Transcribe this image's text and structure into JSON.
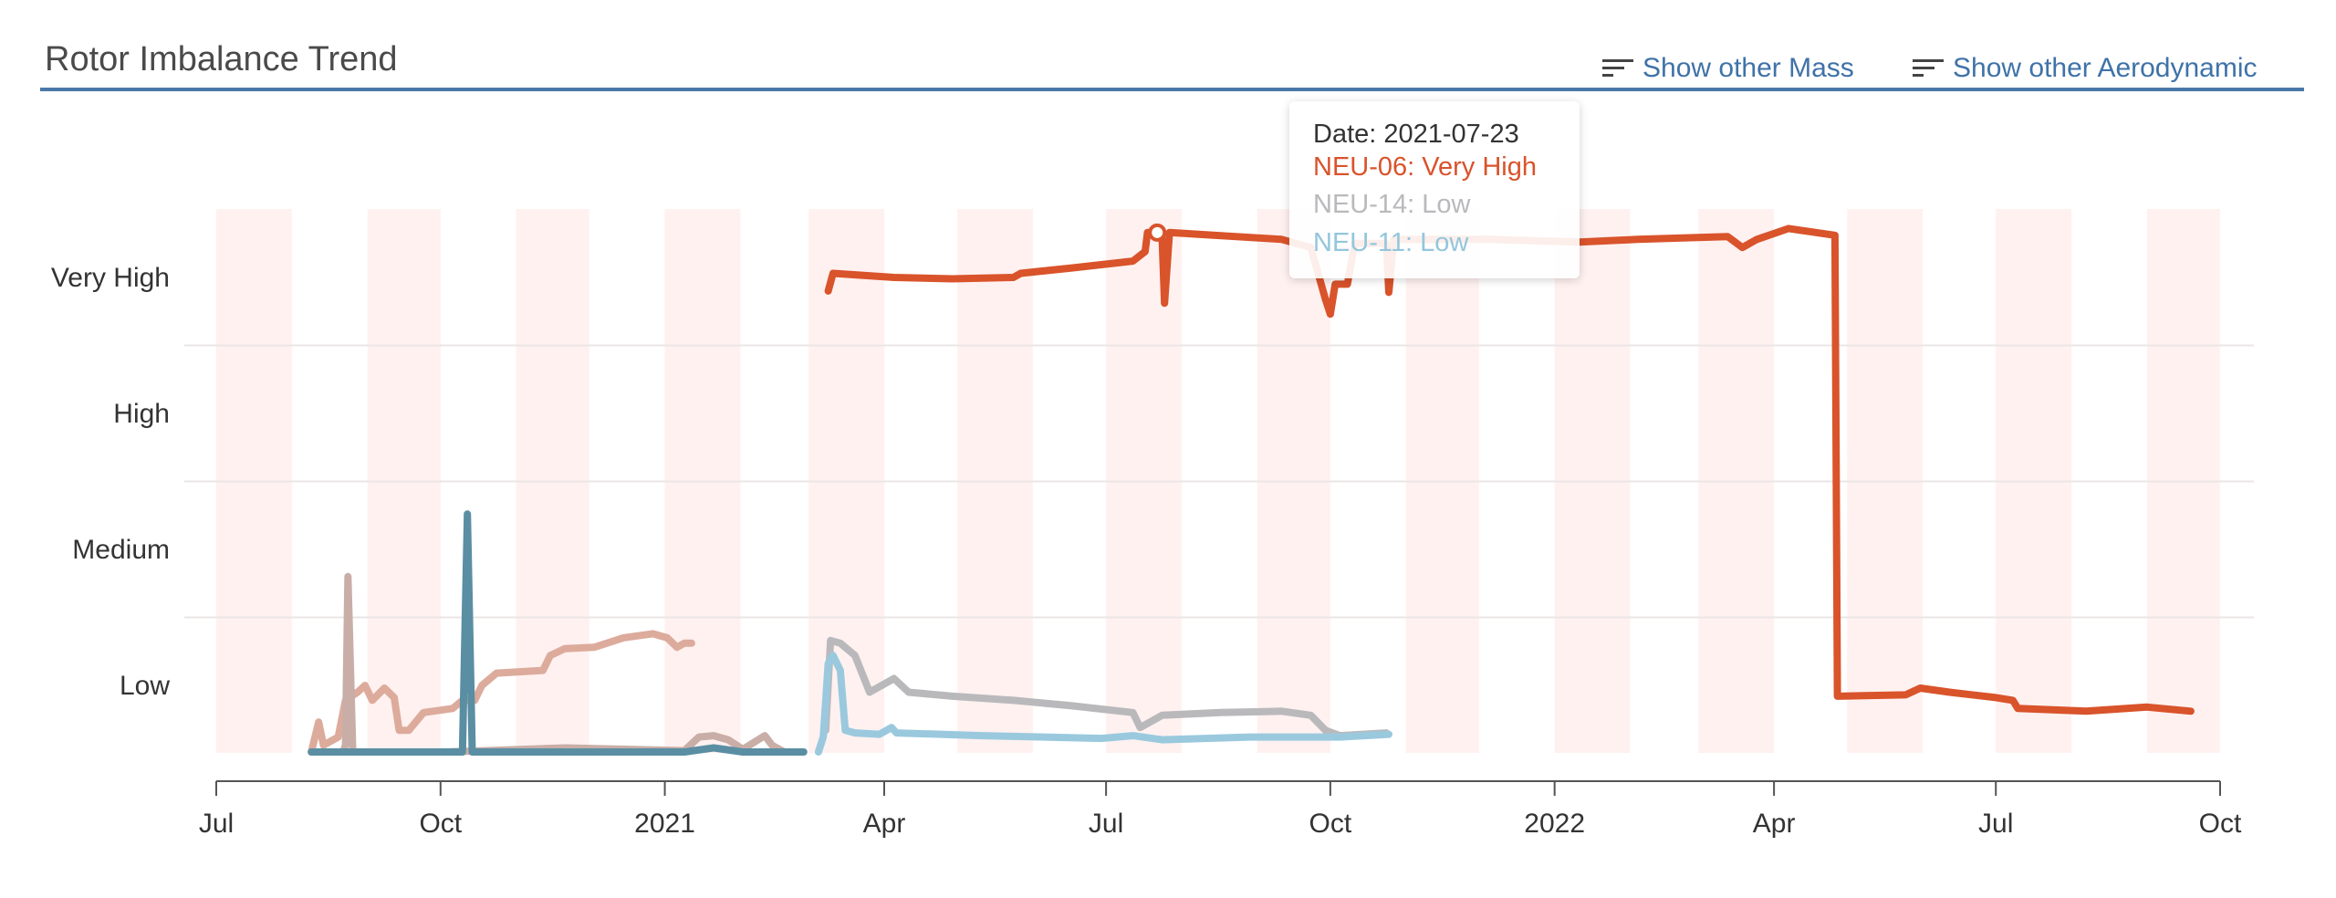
{
  "header": {
    "title": "Rotor Imbalance Trend",
    "links": [
      {
        "label": "Show other Mass",
        "icon": "sort-lines-icon"
      },
      {
        "label": "Show other Aerodynamic",
        "icon": "sort-lines-icon"
      }
    ]
  },
  "colors": {
    "accent": "#4a78a8",
    "link": "#3f72a8",
    "band": "#fff1f0",
    "grid": "#ebe6e6"
  },
  "tooltip": {
    "date_label": "Date: 2021-07-23",
    "lines": [
      {
        "text": "NEU-06: Very High",
        "color": "#d9532b"
      },
      {
        "text": "NEU-14: Low",
        "color": "#b9b9bc"
      },
      {
        "text": "NEU-11: Low",
        "color": "#93c6dc"
      }
    ],
    "marker": {
      "series": "NEU-06",
      "date": "2021-07-22",
      "value": 4.33
    }
  },
  "chart_data": {
    "type": "line",
    "title": "Rotor Imbalance Trend",
    "xlabel": "",
    "ylabel": "",
    "xlim": [
      "2020-07-01",
      "2022-10-01"
    ],
    "x_ticks": [
      {
        "date": "2020-07-01",
        "label": "Jul"
      },
      {
        "date": "2020-10-01",
        "label": "Oct"
      },
      {
        "date": "2021-01-01",
        "label": "2021"
      },
      {
        "date": "2021-04-01",
        "label": "Apr"
      },
      {
        "date": "2021-07-01",
        "label": "Jul"
      },
      {
        "date": "2021-10-01",
        "label": "Oct"
      },
      {
        "date": "2022-01-01",
        "label": "2022"
      },
      {
        "date": "2022-04-01",
        "label": "Apr"
      },
      {
        "date": "2022-07-01",
        "label": "Jul"
      },
      {
        "date": "2022-10-01",
        "label": "Oct"
      }
    ],
    "y_levels": [
      {
        "value": 1,
        "label": "Low"
      },
      {
        "value": 2,
        "label": "Medium"
      },
      {
        "value": 3,
        "label": "High"
      },
      {
        "value": 4,
        "label": "Very High"
      }
    ],
    "ylim": [
      0.5,
      4.5
    ],
    "grid": true,
    "series": [
      {
        "name": "NEU-06",
        "segments": [
          {
            "color": "#dcab9c",
            "points": [
              [
                "2020-08-09",
                0.51
              ],
              [
                "2020-08-12",
                0.73
              ],
              [
                "2020-08-14",
                0.56
              ],
              [
                "2020-08-20",
                0.62
              ],
              [
                "2020-08-23",
                0.89
              ],
              [
                "2020-08-28",
                0.95
              ],
              [
                "2020-08-31",
                1.0
              ],
              [
                "2020-09-03",
                0.89
              ],
              [
                "2020-09-08",
                0.98
              ],
              [
                "2020-09-12",
                0.91
              ],
              [
                "2020-09-14",
                0.67
              ],
              [
                "2020-09-18",
                0.67
              ],
              [
                "2020-09-24",
                0.8
              ],
              [
                "2020-10-06",
                0.83
              ],
              [
                "2020-10-10",
                0.89
              ],
              [
                "2020-10-15",
                0.89
              ],
              [
                "2020-10-18",
                1.0
              ],
              [
                "2020-10-24",
                1.09
              ],
              [
                "2020-11-12",
                1.11
              ],
              [
                "2020-11-15",
                1.22
              ],
              [
                "2020-11-21",
                1.27
              ],
              [
                "2020-12-03",
                1.28
              ],
              [
                "2020-12-15",
                1.35
              ],
              [
                "2020-12-27",
                1.38
              ],
              [
                "2021-01-02",
                1.35
              ],
              [
                "2021-01-06",
                1.28
              ],
              [
                "2021-01-09",
                1.31
              ],
              [
                "2021-01-12",
                1.31
              ]
            ]
          },
          {
            "color": "#d9532b",
            "points": [
              [
                "2021-03-09",
                3.9
              ],
              [
                "2021-03-11",
                4.03
              ],
              [
                "2021-04-05",
                4.0
              ],
              [
                "2021-04-29",
                3.99
              ],
              [
                "2021-05-24",
                4.0
              ],
              [
                "2021-05-27",
                4.03
              ],
              [
                "2021-06-17",
                4.07
              ],
              [
                "2021-07-12",
                4.12
              ],
              [
                "2021-07-17",
                4.19
              ],
              [
                "2021-07-18",
                4.33
              ],
              [
                "2021-07-22",
                4.33
              ],
              [
                "2021-07-24",
                4.28
              ],
              [
                "2021-07-25",
                3.81
              ],
              [
                "2021-07-27",
                4.33
              ],
              [
                "2021-08-05",
                4.32
              ],
              [
                "2021-09-11",
                4.28
              ],
              [
                "2021-09-23",
                4.22
              ],
              [
                "2021-09-29",
                3.84
              ],
              [
                "2021-10-01",
                3.73
              ],
              [
                "2021-10-03",
                3.95
              ],
              [
                "2021-10-08",
                3.95
              ],
              [
                "2021-10-11",
                4.25
              ],
              [
                "2021-10-24",
                4.25
              ],
              [
                "2021-10-25",
                3.89
              ],
              [
                "2021-10-27",
                4.28
              ],
              [
                "2021-12-05",
                4.28
              ],
              [
                "2022-01-11",
                4.26
              ],
              [
                "2022-02-04",
                4.28
              ],
              [
                "2022-03-13",
                4.3
              ],
              [
                "2022-03-19",
                4.22
              ],
              [
                "2022-03-25",
                4.28
              ],
              [
                "2022-04-07",
                4.36
              ],
              [
                "2022-04-26",
                4.31
              ],
              [
                "2022-04-27",
                0.92
              ],
              [
                "2022-05-25",
                0.93
              ],
              [
                "2022-05-31",
                0.98
              ],
              [
                "2022-06-12",
                0.95
              ],
              [
                "2022-07-01",
                0.91
              ],
              [
                "2022-07-08",
                0.89
              ],
              [
                "2022-07-10",
                0.83
              ],
              [
                "2022-08-07",
                0.81
              ],
              [
                "2022-09-01",
                0.84
              ],
              [
                "2022-09-19",
                0.81
              ]
            ]
          }
        ]
      },
      {
        "name": "NEU-14",
        "segments": [
          {
            "color": "#c9aea7",
            "points": [
              [
                "2020-08-09",
                0.51
              ],
              [
                "2020-08-22",
                0.51
              ],
              [
                "2020-08-23",
                0.56
              ],
              [
                "2020-08-24",
                1.8
              ],
              [
                "2020-08-26",
                0.51
              ],
              [
                "2020-10-03",
                0.51
              ],
              [
                "2020-11-21",
                0.54
              ],
              [
                "2021-01-09",
                0.52
              ],
              [
                "2021-01-15",
                0.62
              ],
              [
                "2021-01-21",
                0.63
              ],
              [
                "2021-01-27",
                0.6
              ],
              [
                "2021-02-02",
                0.53
              ],
              [
                "2021-02-11",
                0.63
              ],
              [
                "2021-02-14",
                0.56
              ],
              [
                "2021-02-19",
                0.51
              ]
            ]
          },
          {
            "color": "#b9b9bc",
            "points": [
              [
                "2021-03-08",
                0.67
              ],
              [
                "2021-03-10",
                1.33
              ],
              [
                "2021-03-14",
                1.31
              ],
              [
                "2021-03-20",
                1.22
              ],
              [
                "2021-03-26",
                0.95
              ],
              [
                "2021-04-02",
                1.02
              ],
              [
                "2021-04-05",
                1.05
              ],
              [
                "2021-04-11",
                0.95
              ],
              [
                "2021-04-29",
                0.92
              ],
              [
                "2021-05-24",
                0.89
              ],
              [
                "2021-06-17",
                0.85
              ],
              [
                "2021-07-12",
                0.8
              ],
              [
                "2021-07-15",
                0.69
              ],
              [
                "2021-07-24",
                0.78
              ],
              [
                "2021-08-17",
                0.8
              ],
              [
                "2021-09-11",
                0.81
              ],
              [
                "2021-09-23",
                0.78
              ],
              [
                "2021-09-29",
                0.67
              ],
              [
                "2021-10-05",
                0.63
              ],
              [
                "2021-10-24",
                0.65
              ]
            ]
          }
        ]
      },
      {
        "name": "NEU-11",
        "segments": [
          {
            "color": "#5a8ea3",
            "points": [
              [
                "2020-08-09",
                0.51
              ],
              [
                "2020-10-10",
                0.51
              ],
              [
                "2020-10-12",
                2.26
              ],
              [
                "2020-10-14",
                0.51
              ],
              [
                "2021-01-09",
                0.51
              ],
              [
                "2021-01-21",
                0.54
              ],
              [
                "2021-02-02",
                0.51
              ],
              [
                "2021-02-27",
                0.51
              ]
            ]
          },
          {
            "color": "#9ac9de",
            "points": [
              [
                "2021-03-05",
                0.51
              ],
              [
                "2021-03-07",
                0.62
              ],
              [
                "2021-03-09",
                1.16
              ],
              [
                "2021-03-11",
                1.22
              ],
              [
                "2021-03-14",
                1.11
              ],
              [
                "2021-03-16",
                0.67
              ],
              [
                "2021-03-20",
                0.65
              ],
              [
                "2021-03-30",
                0.64
              ],
              [
                "2021-04-04",
                0.69
              ],
              [
                "2021-04-06",
                0.65
              ],
              [
                "2021-05-11",
                0.63
              ],
              [
                "2021-06-29",
                0.61
              ],
              [
                "2021-07-12",
                0.63
              ],
              [
                "2021-07-24",
                0.6
              ],
              [
                "2021-08-29",
                0.62
              ],
              [
                "2021-10-05",
                0.62
              ],
              [
                "2021-10-25",
                0.64
              ]
            ]
          }
        ]
      }
    ]
  }
}
